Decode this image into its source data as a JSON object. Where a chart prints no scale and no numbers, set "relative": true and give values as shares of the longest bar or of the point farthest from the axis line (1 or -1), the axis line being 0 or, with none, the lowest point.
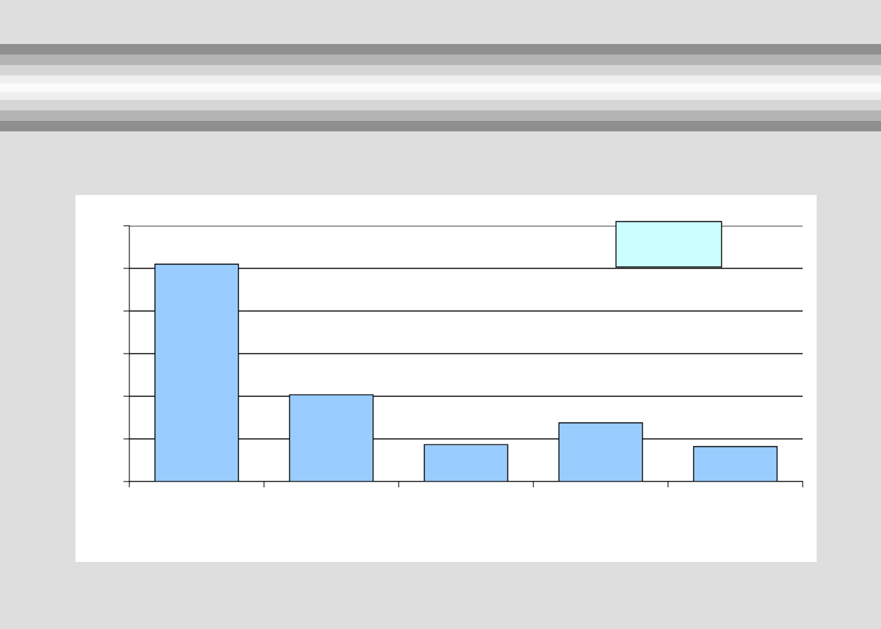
{
  "chart_data": {
    "type": "bar",
    "relative": true,
    "grid": "y",
    "categories": [
      null,
      null,
      null,
      null,
      null
    ],
    "series": [
      {
        "color": "#99ccff",
        "values": [
          1,
          0.399,
          0.17,
          0.27,
          0.161
        ]
      }
    ]
  }
}
